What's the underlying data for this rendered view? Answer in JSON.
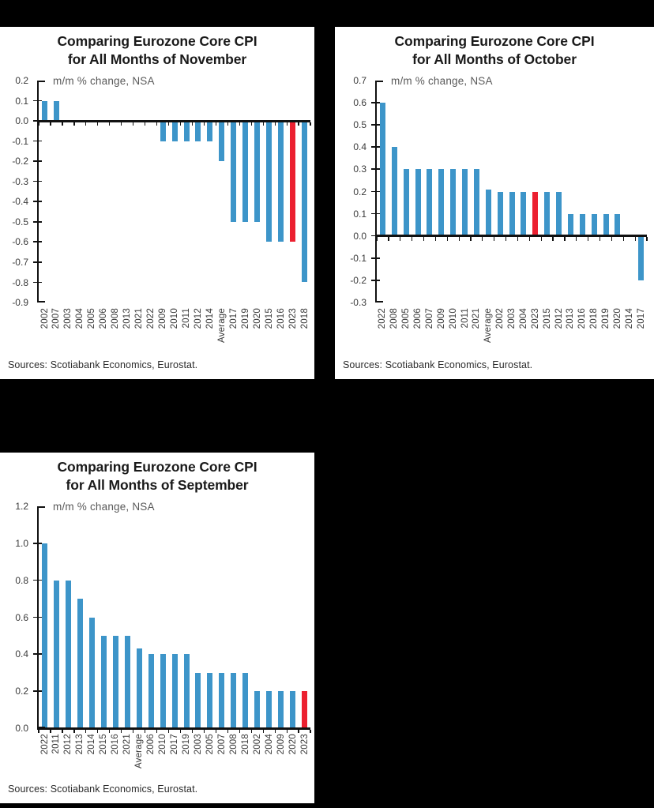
{
  "figure": {
    "background": "#000000",
    "panel_background": "#ffffff"
  },
  "colors": {
    "bar": "#3D95C9",
    "bar_highlight": "#EC2030",
    "axis": "#111111",
    "title": "#1a1a1a",
    "subtitle": "#595959",
    "tick_label": "#3a3a3a",
    "source": "#2b2b2b"
  },
  "chart_data": [
    {
      "type": "bar",
      "title_lines": [
        "Comparing Eurozone Core CPI",
        "for All Months of November"
      ],
      "subtitle": "m/m % change, NSA",
      "categories": [
        "2002",
        "2007",
        "2003",
        "2004",
        "2005",
        "2006",
        "2008",
        "2013",
        "2021",
        "2022",
        "2009",
        "2010",
        "2011",
        "2012",
        "2014",
        "Average",
        "2017",
        "2019",
        "2020",
        "2015",
        "2016",
        "2023",
        "2018"
      ],
      "values": [
        0.1,
        0.1,
        0,
        0,
        0,
        0,
        0,
        0,
        0,
        0,
        -0.1,
        -0.1,
        -0.1,
        -0.1,
        -0.1,
        -0.2,
        -0.5,
        -0.5,
        -0.5,
        -0.6,
        -0.6,
        -0.6,
        -0.8
      ],
      "highlight_category": "2023",
      "ylim": [
        -0.9,
        0.2
      ],
      "ytick_labels": [
        "0.2",
        "0.1",
        "0.0",
        "-0.1",
        "-0.2",
        "-0.3",
        "-0.4",
        "-0.5",
        "-0.6",
        "-0.7",
        "-0.8",
        "-0.9"
      ],
      "ytick_values": [
        0.2,
        0.1,
        0,
        -0.1,
        -0.2,
        -0.3,
        -0.4,
        -0.5,
        -0.6,
        -0.7,
        -0.8,
        -0.9
      ],
      "legend_position": "none",
      "grid": false,
      "source": "Sources: Scotiabank Economics, Eurostat."
    },
    {
      "type": "bar",
      "title_lines": [
        "Comparing Eurozone Core CPI",
        "for All Months of October"
      ],
      "subtitle": "m/m % change, NSA",
      "categories": [
        "2022",
        "2008",
        "2005",
        "2006",
        "2007",
        "2009",
        "2010",
        "2011",
        "2021",
        "Average",
        "2002",
        "2003",
        "2004",
        "2023",
        "2015",
        "2012",
        "2013",
        "2016",
        "2018",
        "2019",
        "2020",
        "2014",
        "2017"
      ],
      "values": [
        0.6,
        0.4,
        0.3,
        0.3,
        0.3,
        0.3,
        0.3,
        0.3,
        0.3,
        0.21,
        0.2,
        0.2,
        0.2,
        0.2,
        0.2,
        0.2,
        0.1,
        0.1,
        0.1,
        0.1,
        0.1,
        0,
        -0.2
      ],
      "highlight_category": "2023",
      "ylim": [
        -0.3,
        0.7
      ],
      "ytick_labels": [
        "0.7",
        "0.6",
        "0.5",
        "0.4",
        "0.3",
        "0.2",
        "0.1",
        "0.0",
        "-0.1",
        "-0.2",
        "-0.3"
      ],
      "ytick_values": [
        0.7,
        0.6,
        0.5,
        0.4,
        0.3,
        0.2,
        0.1,
        0,
        -0.1,
        -0.2,
        -0.3
      ],
      "legend_position": "none",
      "grid": false,
      "source": "Sources: Scotiabank Economics, Eurostat."
    },
    {
      "type": "bar",
      "title_lines": [
        "Comparing Eurozone Core CPI",
        "for All Months of September"
      ],
      "subtitle": "m/m % change, NSA",
      "categories": [
        "2022",
        "2011",
        "2012",
        "2013",
        "2014",
        "2015",
        "2016",
        "2021",
        "Average",
        "2006",
        "2010",
        "2017",
        "2019",
        "2003",
        "2005",
        "2007",
        "2008",
        "2018",
        "2002",
        "2004",
        "2009",
        "2020",
        "2023"
      ],
      "values": [
        1.0,
        0.8,
        0.8,
        0.7,
        0.6,
        0.5,
        0.5,
        0.5,
        0.43,
        0.4,
        0.4,
        0.4,
        0.4,
        0.3,
        0.3,
        0.3,
        0.3,
        0.3,
        0.2,
        0.2,
        0.2,
        0.2,
        0.2
      ],
      "highlight_category": "2023",
      "ylim": [
        0.0,
        1.2
      ],
      "ytick_labels": [
        "1.2",
        "1.0",
        "0.8",
        "0.6",
        "0.4",
        "0.2",
        "0.0"
      ],
      "ytick_values": [
        1.2,
        1.0,
        0.8,
        0.6,
        0.4,
        0.2,
        0
      ],
      "legend_position": "none",
      "grid": false,
      "source": "Sources: Scotiabank Economics, Eurostat."
    }
  ]
}
